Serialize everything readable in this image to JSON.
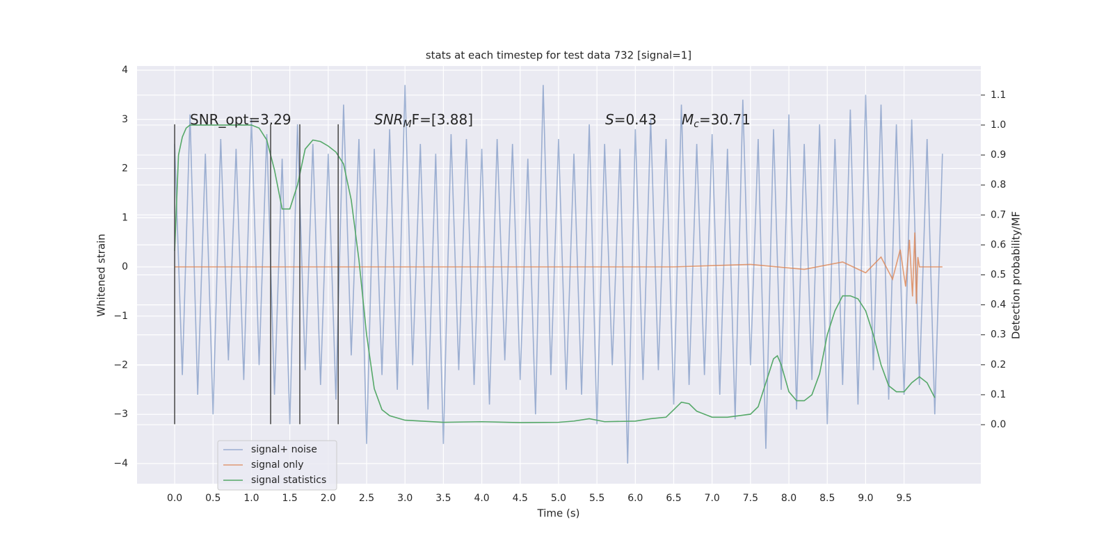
{
  "chart_data": {
    "type": "line",
    "title": "stats at each timestep for test data 732 [signal=1]",
    "x_label": "Time (s)",
    "y_label": "Whitened strain",
    "y2_label": "Detection probability/MF",
    "xlim": [
      -0.49,
      10.5
    ],
    "ylim": [
      -4.41,
      4.085
    ],
    "y2lim": [
      -0.197,
      1.197
    ],
    "xticks": [
      {
        "value": 0,
        "label": "0.0"
      },
      {
        "value": 0.5,
        "label": "0.5"
      },
      {
        "value": 1,
        "label": "1.0"
      },
      {
        "value": 1.5,
        "label": "1.5"
      },
      {
        "value": 2,
        "label": "2.0"
      },
      {
        "value": 2.5,
        "label": "2.5"
      },
      {
        "value": 3,
        "label": "3.0"
      },
      {
        "value": 3.5,
        "label": "3.5"
      },
      {
        "value": 4,
        "label": "4.0"
      },
      {
        "value": 4.5,
        "label": "4.5"
      },
      {
        "value": 5,
        "label": "5.0"
      },
      {
        "value": 5.5,
        "label": "5.5"
      },
      {
        "value": 6,
        "label": "6.0"
      },
      {
        "value": 6.5,
        "label": "6.5"
      },
      {
        "value": 7,
        "label": "7.0"
      },
      {
        "value": 7.5,
        "label": "7.5"
      },
      {
        "value": 8,
        "label": "8.0"
      },
      {
        "value": 8.5,
        "label": "8.5"
      },
      {
        "value": 9,
        "label": "9.0"
      },
      {
        "value": 9.5,
        "label": "9.5"
      }
    ],
    "yticks": [
      {
        "value": -4,
        "label": "−4"
      },
      {
        "value": -3,
        "label": "−3"
      },
      {
        "value": -2,
        "label": "−2"
      },
      {
        "value": -1,
        "label": "−1"
      },
      0,
      1,
      2,
      3,
      4
    ],
    "y2ticks": [
      {
        "value": 0,
        "label": "0.0"
      },
      {
        "value": 0.1,
        "label": "0.1"
      },
      {
        "value": 0.2,
        "label": "0.2"
      },
      {
        "value": 0.3,
        "label": "0.3"
      },
      {
        "value": 0.4,
        "label": "0.4"
      },
      {
        "value": 0.5,
        "label": "0.5"
      },
      {
        "value": 0.6,
        "label": "0.6"
      },
      {
        "value": 0.7,
        "label": "0.7"
      },
      {
        "value": 0.8,
        "label": "0.8"
      },
      {
        "value": 0.9,
        "label": "0.9"
      },
      {
        "value": 1,
        "label": "1.0"
      },
      {
        "value": 1.1,
        "label": "1.1"
      }
    ],
    "grid": true,
    "legend_position": "lower left",
    "series": [
      {
        "name": "signal+ noise",
        "color": "#4c72b0",
        "opacity": 0.5,
        "x": [
          0,
          0.1,
          0.2,
          0.3,
          0.4,
          0.5,
          0.6,
          0.7,
          0.8,
          0.9,
          1,
          1.1,
          1.2,
          1.3,
          1.4,
          1.5,
          1.6,
          1.7,
          1.8,
          1.9,
          2,
          2.1,
          2.2,
          2.3,
          2.4,
          2.5,
          2.6,
          2.7,
          2.8,
          2.9,
          3,
          3.1,
          3.2,
          3.3,
          3.4,
          3.5,
          3.6,
          3.7,
          3.8,
          3.9,
          4,
          4.1,
          4.2,
          4.3,
          4.4,
          4.5,
          4.6,
          4.7,
          4.8,
          4.9,
          5,
          5.1,
          5.2,
          5.3,
          5.4,
          5.5,
          5.6,
          5.7,
          5.8,
          5.9,
          6,
          6.1,
          6.2,
          6.3,
          6.4,
          6.5,
          6.6,
          6.7,
          6.8,
          6.9,
          7,
          7.1,
          7.2,
          7.3,
          7.4,
          7.5,
          7.6,
          7.7,
          7.8,
          7.9,
          8,
          8.1,
          8.2,
          8.3,
          8.4,
          8.5,
          8.6,
          8.7,
          8.8,
          8.9,
          9,
          9.1,
          9.2,
          9.3,
          9.4,
          9.5,
          9.6,
          9.7,
          9.8,
          9.9,
          10
        ],
        "values": [
          2.5,
          -2.2,
          3.1,
          -2.6,
          2.3,
          -3.0,
          2.6,
          -1.9,
          2.4,
          -2.3,
          3.0,
          -2.0,
          2.7,
          -2.6,
          2.2,
          -3.2,
          2.9,
          -2.1,
          2.5,
          -2.4,
          2.3,
          -2.7,
          3.3,
          -1.8,
          2.6,
          -3.6,
          2.4,
          -2.2,
          2.8,
          -2.5,
          3.7,
          -2.0,
          2.5,
          -2.9,
          2.3,
          -3.6,
          2.7,
          -2.1,
          2.6,
          -2.4,
          2.4,
          -2.8,
          2.6,
          -1.9,
          2.5,
          -2.3,
          2.2,
          -3.0,
          3.7,
          -2.2,
          2.6,
          -2.5,
          2.3,
          -2.6,
          2.9,
          -3.2,
          2.5,
          -2.0,
          2.4,
          -4.0,
          2.8,
          -2.3,
          3.0,
          -2.1,
          2.6,
          -2.8,
          3.3,
          -2.4,
          2.5,
          -2.2,
          2.7,
          -2.6,
          2.4,
          -3.1,
          3.4,
          -2.0,
          2.6,
          -3.7,
          2.8,
          -2.5,
          3.1,
          -2.9,
          2.5,
          -2.3,
          2.9,
          -3.2,
          2.6,
          -2.4,
          3.2,
          -2.8,
          3.5,
          -2.1,
          3.3,
          -2.7,
          2.9,
          -2.6,
          3.0,
          -2.4,
          2.6,
          -3.0,
          2.3
        ]
      },
      {
        "name": "signal only",
        "color": "#dd8452",
        "opacity": 0.8,
        "x": [
          0,
          6.5,
          7.5,
          8.2,
          8.7,
          9.0,
          9.2,
          9.35,
          9.45,
          9.52,
          9.57,
          9.61,
          9.64,
          9.66,
          9.68,
          9.7,
          10
        ],
        "values": [
          0,
          0,
          0.05,
          -0.05,
          0.1,
          -0.12,
          0.2,
          -0.25,
          0.35,
          -0.4,
          0.55,
          -0.6,
          0.7,
          -0.75,
          0.2,
          0,
          0
        ]
      },
      {
        "name": "signal statistics",
        "color": "#55a868",
        "opacity": 1,
        "axis": "y2",
        "x": [
          0,
          0.05,
          0.1,
          0.15,
          0.2,
          1.0,
          1.1,
          1.2,
          1.3,
          1.4,
          1.5,
          1.6,
          1.7,
          1.8,
          1.9,
          2.0,
          2.1,
          2.2,
          2.3,
          2.4,
          2.5,
          2.6,
          2.7,
          2.8,
          3.0,
          3.5,
          4.0,
          4.5,
          5.0,
          5.2,
          5.4,
          5.6,
          6.0,
          6.2,
          6.4,
          6.5,
          6.6,
          6.7,
          6.8,
          7.0,
          7.2,
          7.5,
          7.6,
          7.7,
          7.8,
          7.85,
          7.9,
          8.0,
          8.1,
          8.2,
          8.3,
          8.4,
          8.5,
          8.6,
          8.7,
          8.8,
          8.9,
          9.0,
          9.1,
          9.2,
          9.3,
          9.4,
          9.5,
          9.6,
          9.7,
          9.8,
          9.9
        ],
        "values": [
          0.58,
          0.9,
          0.96,
          0.99,
          1.0,
          1.0,
          0.99,
          0.95,
          0.85,
          0.72,
          0.72,
          0.8,
          0.92,
          0.95,
          0.945,
          0.93,
          0.91,
          0.87,
          0.75,
          0.55,
          0.3,
          0.12,
          0.05,
          0.03,
          0.015,
          0.008,
          0.01,
          0.007,
          0.008,
          0.012,
          0.02,
          0.01,
          0.012,
          0.02,
          0.025,
          0.05,
          0.075,
          0.07,
          0.045,
          0.025,
          0.025,
          0.035,
          0.06,
          0.14,
          0.22,
          0.23,
          0.2,
          0.11,
          0.08,
          0.08,
          0.1,
          0.17,
          0.3,
          0.38,
          0.43,
          0.43,
          0.42,
          0.38,
          0.3,
          0.2,
          0.13,
          0.11,
          0.11,
          0.14,
          0.16,
          0.14,
          0.09
        ]
      }
    ],
    "vlines": {
      "x": [
        0,
        1.25,
        1.63,
        2.13
      ],
      "ymin": -3.2,
      "ymax": 2.9,
      "color": "#444444"
    },
    "annotations": [
      {
        "base": "SNR_opt=3.29",
        "math": false
      },
      {
        "base": "SNR",
        "sub": "M",
        "rest": "F=[3.88]",
        "math": true
      },
      {
        "base": "S",
        "rest": "=0.43",
        "math": true
      },
      {
        "base": "M",
        "sub": "c",
        "rest": "=30.71",
        "math": true
      }
    ]
  }
}
